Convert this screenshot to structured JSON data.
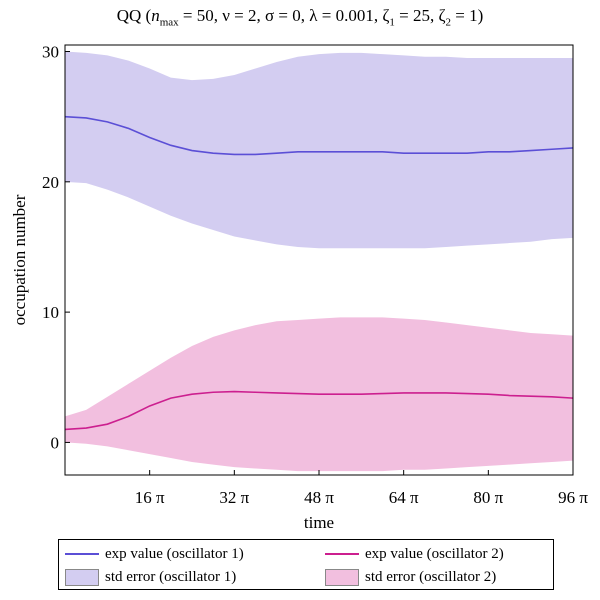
{
  "chart_data": {
    "type": "area",
    "title": "QQ  (n_max = 50, ν = 2, σ = 0, λ = 0.001, ζ_1 = 25, ζ_2 = 1)",
    "title_parts": {
      "prefix": "QQ  (",
      "n": "n",
      "n_sub": "max",
      "params": " = 50, ν = 2, σ = 0, λ = 0.001, ζ",
      "zeta1_sub": "1",
      "zeta1_val": " = 25, ζ",
      "zeta2_sub": "2",
      "zeta2_val": " = 1)"
    },
    "xlabel": "time",
    "ylabel": "occupation number",
    "x_unit": "π",
    "xlim": [
      0,
      96
    ],
    "ylim": [
      -2.5,
      30.5
    ],
    "xticks": [
      16,
      32,
      48,
      64,
      80,
      96
    ],
    "xtick_labels": [
      "16 π",
      "32 π",
      "48 π",
      "64 π",
      "80 π",
      "96 π"
    ],
    "yticks": [
      0,
      10,
      20,
      30
    ],
    "ytick_labels": [
      "0",
      "10",
      "20",
      "30"
    ],
    "x": [
      0,
      4,
      8,
      12,
      16,
      20,
      24,
      28,
      32,
      36,
      40,
      44,
      48,
      52,
      56,
      60,
      64,
      68,
      72,
      76,
      80,
      84,
      88,
      92,
      96
    ],
    "series": [
      {
        "name": "exp value (oscillator 1)",
        "color": "#5b4fd6",
        "values": [
          25.0,
          24.9,
          24.6,
          24.1,
          23.4,
          22.8,
          22.4,
          22.2,
          22.1,
          22.1,
          22.2,
          22.3,
          22.3,
          22.3,
          22.3,
          22.3,
          22.2,
          22.2,
          22.2,
          22.2,
          22.3,
          22.3,
          22.4,
          22.5,
          22.6
        ]
      },
      {
        "name": "exp value (oscillator 2)",
        "color": "#cc1f8f",
        "values": [
          1.0,
          1.1,
          1.4,
          2.0,
          2.8,
          3.4,
          3.7,
          3.85,
          3.9,
          3.85,
          3.8,
          3.75,
          3.7,
          3.7,
          3.7,
          3.75,
          3.8,
          3.8,
          3.8,
          3.75,
          3.7,
          3.6,
          3.55,
          3.5,
          3.4
        ]
      }
    ],
    "bands": [
      {
        "name": "std error (oscillator 1)",
        "color": "#d3cdf1",
        "upper": [
          30.0,
          29.9,
          29.7,
          29.3,
          28.7,
          28.0,
          27.8,
          27.9,
          28.2,
          28.7,
          29.2,
          29.6,
          29.8,
          29.9,
          29.9,
          29.8,
          29.7,
          29.6,
          29.6,
          29.5,
          29.5,
          29.5,
          29.5,
          29.5,
          29.5
        ],
        "lower": [
          20.0,
          19.9,
          19.4,
          18.8,
          18.1,
          17.4,
          16.8,
          16.3,
          15.8,
          15.5,
          15.2,
          15.0,
          14.9,
          14.9,
          14.9,
          14.9,
          14.9,
          14.9,
          15.0,
          15.1,
          15.2,
          15.3,
          15.4,
          15.6,
          15.7
        ]
      },
      {
        "name": "std error (oscillator 2)",
        "color": "#f2bfdf",
        "upper": [
          2.0,
          2.5,
          3.5,
          4.5,
          5.5,
          6.5,
          7.4,
          8.1,
          8.6,
          9.0,
          9.3,
          9.4,
          9.5,
          9.6,
          9.6,
          9.6,
          9.5,
          9.4,
          9.2,
          9.0,
          8.8,
          8.6,
          8.4,
          8.3,
          8.2
        ],
        "lower": [
          0.0,
          -0.1,
          -0.3,
          -0.6,
          -0.9,
          -1.2,
          -1.5,
          -1.7,
          -1.9,
          -2.0,
          -2.1,
          -2.2,
          -2.2,
          -2.2,
          -2.2,
          -2.2,
          -2.1,
          -2.1,
          -2.0,
          -1.9,
          -1.8,
          -1.7,
          -1.6,
          -1.5,
          -1.4
        ]
      }
    ],
    "legend": {
      "placement": "bottom",
      "entries": [
        {
          "label": "exp value (oscillator 1)",
          "kind": "line",
          "color": "#5b4fd6"
        },
        {
          "label": "exp value (oscillator 2)",
          "kind": "line",
          "color": "#cc1f8f"
        },
        {
          "label": "std error (oscillator 1)",
          "kind": "area",
          "color": "#d3cdf1"
        },
        {
          "label": "std error (oscillator 2)",
          "kind": "area",
          "color": "#f2bfdf"
        }
      ]
    }
  }
}
